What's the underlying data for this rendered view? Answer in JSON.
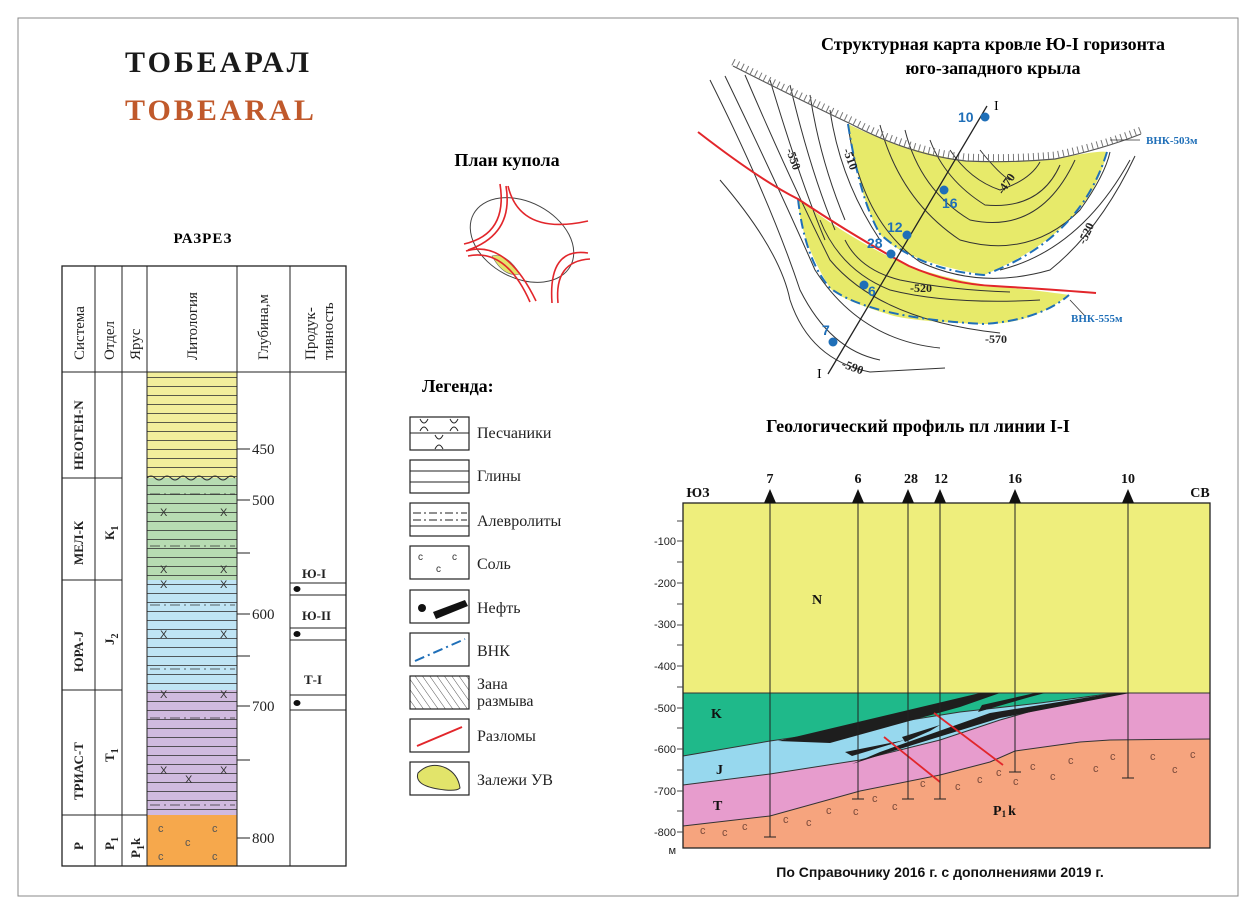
{
  "title": {
    "ru": "ТОБЕАРАЛ",
    "en": "TOBEARAL"
  },
  "colors": {
    "title_en": "#c0592b",
    "neogen": "#f2ee9c",
    "cretaceous": "#b7dcb2",
    "jurassic": "#bfe4f4",
    "triassic": "#d0badf",
    "permian": "#f6a84c",
    "profile_n": "#eeee7c",
    "profile_k": "#1fb98a",
    "profile_j": "#97d8ee",
    "profile_t": "#e79ccd",
    "profile_p": "#f6a47e",
    "fault": "#e2262b",
    "vnk": "#1f6fb8",
    "deposit": "#e7ea6a"
  },
  "section": {
    "title": "РАЗРЕЗ",
    "headers": [
      "Система",
      "Отдел",
      "Ярус",
      "Литология",
      "Глубина,м",
      "Продук-",
      "тивность"
    ],
    "systems": [
      "НЕОГЕН-N",
      "МЕЛ-К",
      "ЮРА-J",
      "ТРИАС-Т",
      "Р"
    ],
    "series": [
      "К",
      "1",
      "J",
      "2",
      "Т",
      "1",
      "Р",
      "1"
    ],
    "stage": [
      "Р",
      "1",
      "k"
    ],
    "depths": [
      "450",
      "500",
      "600",
      "700",
      "800"
    ],
    "horizons": [
      "Ю-I",
      "Ю-II",
      "Т-I"
    ]
  },
  "dome_plan": {
    "title": "План купола"
  },
  "legend": {
    "title": "Легенда:",
    "items": [
      "Песчаники",
      "Глины",
      "Алевролиты",
      "Соль",
      "Нефть",
      "ВНК",
      "Зана",
      "размыва",
      "Разломы",
      "Залежи УВ"
    ]
  },
  "map": {
    "title_line1": "Структурная карта кровле Ю-I горизонта",
    "title_line2": "юго-западного крыла",
    "wells": [
      "10",
      "16",
      "12",
      "28",
      "6",
      "7"
    ],
    "section_line_end": "I",
    "contours": [
      "-550",
      "-510",
      "-470",
      "-520",
      "-520",
      "-570",
      "-590"
    ],
    "vnk_upper": "ВНК-503м",
    "vnk_lower": "ВНК-555м"
  },
  "profile": {
    "title": "Геологический профиль пл линии I-I",
    "left_dir": "ЮЗ",
    "right_dir": "СВ",
    "wells": [
      "7",
      "6",
      "28",
      "12",
      "16",
      "10"
    ],
    "depth_ticks": [
      "-100",
      "-200",
      "-300",
      "-400",
      "-500",
      "-600",
      "-700",
      "-800"
    ],
    "unit": "м",
    "layers": [
      "N",
      "K",
      "J",
      "T",
      "P",
      "1",
      "k"
    ],
    "salt_mark": "c"
  },
  "source_note": "По Справочнику 2016 г. с дополнениями 2019 г."
}
